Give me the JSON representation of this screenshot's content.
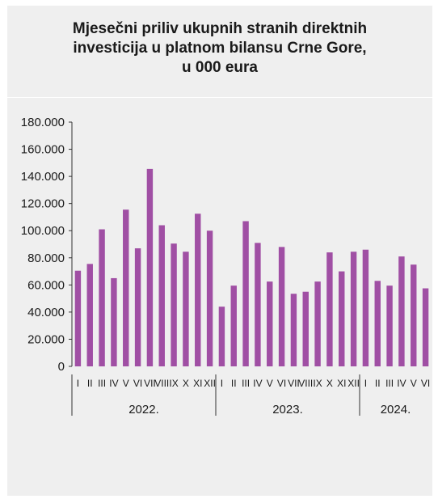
{
  "chart_data": {
    "type": "bar",
    "title_lines": [
      "Mjesečni priliv ukupnih stranih direktnih",
      "investicija u platnom bilansu Crne Gore,",
      "u 000 eura"
    ],
    "ylim": [
      0,
      180000
    ],
    "yticks": [
      0,
      20000,
      40000,
      60000,
      80000,
      100000,
      120000,
      140000,
      160000,
      180000
    ],
    "ytick_labels": [
      "0",
      "20.000",
      "40.000",
      "60.000",
      "80.000",
      "100.000",
      "120.000",
      "140.000",
      "160.000",
      "180.000"
    ],
    "categories": [
      "I",
      "II",
      "III",
      "IV",
      "V",
      "VI",
      "VII",
      "VIII",
      "IX",
      "X",
      "XI",
      "XII",
      "I",
      "II",
      "III",
      "IV",
      "V",
      "VI",
      "VII",
      "VIII",
      "IX",
      "X",
      "XI",
      "XII",
      "I",
      "II",
      "III",
      "IV",
      "V",
      "VI"
    ],
    "values": [
      70500,
      75500,
      101000,
      65000,
      115500,
      87000,
      145500,
      104000,
      90500,
      84500,
      112500,
      100000,
      44000,
      59500,
      107000,
      91000,
      62500,
      88000,
      53500,
      55000,
      62500,
      84000,
      70000,
      84500,
      86000,
      63000,
      59500,
      81000,
      75000,
      57500
    ],
    "groups": [
      {
        "label": "2022.",
        "start": 0,
        "count": 12
      },
      {
        "label": "2023.",
        "start": 12,
        "count": 12
      },
      {
        "label": "2024.",
        "start": 24,
        "count": 6
      }
    ],
    "bar_color": "#a04fa4",
    "grid": false,
    "legend": "none"
  },
  "colors": {
    "background": "#efefef",
    "text": "#1a1a1a"
  }
}
